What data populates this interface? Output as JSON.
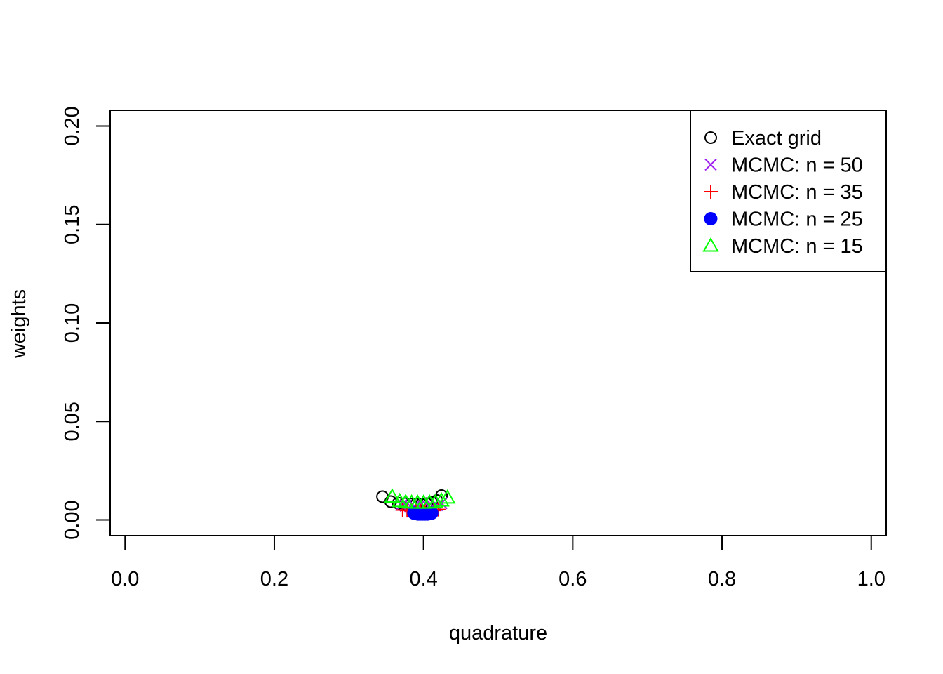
{
  "chart_data": {
    "type": "scatter",
    "title": "",
    "xlabel": "quadrature",
    "ylabel": "weights",
    "xlim": [
      -0.02,
      1.02
    ],
    "ylim": [
      -0.008,
      0.208
    ],
    "x_ticks": [
      0,
      0.2,
      0.4,
      0.6,
      0.8,
      1.0
    ],
    "x_tick_labels": [
      "0.0",
      "0.2",
      "0.4",
      "0.6",
      "0.8",
      "1.0"
    ],
    "y_ticks": [
      0,
      0.05,
      0.1,
      0.15,
      0.2
    ],
    "y_tick_labels": [
      "0.00",
      "0.05",
      "0.10",
      "0.15",
      "0.20"
    ],
    "grid": false,
    "legend_position": "top-right",
    "series": [
      {
        "name": "Exact grid",
        "marker": "open-circle",
        "color": "#000000",
        "x": [
          0.345,
          0.356,
          0.366,
          0.375,
          0.383,
          0.39,
          0.397,
          0.404,
          0.411,
          0.418,
          0.424
        ],
        "y": [
          0.0118,
          0.0093,
          0.0085,
          0.0082,
          0.008,
          0.0079,
          0.008,
          0.0082,
          0.0088,
          0.0098,
          0.0123
        ]
      },
      {
        "name": "MCMC: n = 50",
        "marker": "cross",
        "color": "#a020f0",
        "x": [
          0.37,
          0.376,
          0.382,
          0.388,
          0.394,
          0.4,
          0.406,
          0.412,
          0.418,
          0.424
        ],
        "y": [
          0.0075,
          0.0072,
          0.007,
          0.0069,
          0.0068,
          0.0068,
          0.0069,
          0.0071,
          0.0075,
          0.0085
        ]
      },
      {
        "name": "MCMC: n = 35",
        "marker": "plus",
        "color": "#ff0000",
        "x": [
          0.372,
          0.378,
          0.384,
          0.39,
          0.396,
          0.402,
          0.408,
          0.414,
          0.42
        ],
        "y": [
          0.005,
          0.0048,
          0.0046,
          0.0045,
          0.0045,
          0.0045,
          0.0046,
          0.0048,
          0.0053
        ]
      },
      {
        "name": "MCMC: n = 25",
        "marker": "filled-circle",
        "color": "#0000ff",
        "x": [
          0.387,
          0.39,
          0.393,
          0.396,
          0.399,
          0.402,
          0.405,
          0.408,
          0.411
        ],
        "y": [
          0.0035,
          0.0032,
          0.003,
          0.003,
          0.003,
          0.003,
          0.003,
          0.0032,
          0.0035
        ]
      },
      {
        "name": "MCMC: n = 15",
        "marker": "open-triangle",
        "color": "#00ff00",
        "x": [
          0.358,
          0.368,
          0.376,
          0.384,
          0.392,
          0.4,
          0.408,
          0.416,
          0.424,
          0.432
        ],
        "y": [
          0.0118,
          0.0095,
          0.009,
          0.0088,
          0.0087,
          0.0087,
          0.0088,
          0.009,
          0.0098,
          0.0113
        ]
      }
    ]
  }
}
